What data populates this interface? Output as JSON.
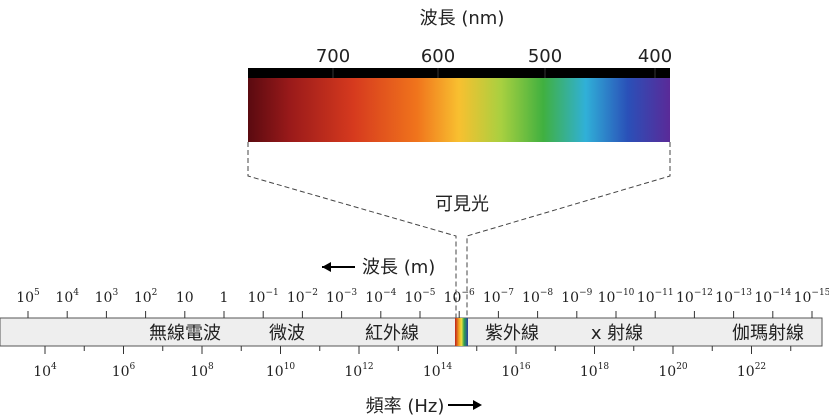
{
  "title": "波長 (nm)",
  "visible": {
    "ticks": [
      700,
      600,
      500,
      400
    ],
    "label": "可見光"
  },
  "wavelength": {
    "label": "波長 (m)",
    "ticks": [
      {
        "base": "10",
        "exp": "5"
      },
      {
        "base": "10",
        "exp": "4"
      },
      {
        "base": "10",
        "exp": "3"
      },
      {
        "base": "10",
        "exp": "2"
      },
      {
        "base": "10"
      },
      {
        "base": "1"
      },
      {
        "base": "10",
        "exp": "−1"
      },
      {
        "base": "10",
        "exp": "−2"
      },
      {
        "base": "10",
        "exp": "−3"
      },
      {
        "base": "10",
        "exp": "−4"
      },
      {
        "base": "10",
        "exp": "−5"
      },
      {
        "base": "10",
        "exp": "−6"
      },
      {
        "base": "10",
        "exp": "−7"
      },
      {
        "base": "10",
        "exp": "−8"
      },
      {
        "base": "10",
        "exp": "−9"
      },
      {
        "base": "10",
        "exp": "−10"
      },
      {
        "base": "10",
        "exp": "−11"
      },
      {
        "base": "10",
        "exp": "−12"
      },
      {
        "base": "10",
        "exp": "−13"
      },
      {
        "base": "10",
        "exp": "−14"
      },
      {
        "base": "10",
        "exp": "−15"
      }
    ]
  },
  "bands": [
    "無線電波",
    "微波",
    "紅外線",
    "紫外線",
    "x 射線",
    "伽瑪射線"
  ],
  "frequency": {
    "label": "頻率 (Hz)",
    "ticks": [
      {
        "base": "10",
        "exp": "4"
      },
      {
        "base": "10",
        "exp": "6"
      },
      {
        "base": "10",
        "exp": "8"
      },
      {
        "base": "10",
        "exp": "10"
      },
      {
        "base": "10",
        "exp": "12"
      },
      {
        "base": "10",
        "exp": "14"
      },
      {
        "base": "10",
        "exp": "16"
      },
      {
        "base": "10",
        "exp": "18"
      },
      {
        "base": "10",
        "exp": "20"
      },
      {
        "base": "10",
        "exp": "22"
      }
    ]
  }
}
